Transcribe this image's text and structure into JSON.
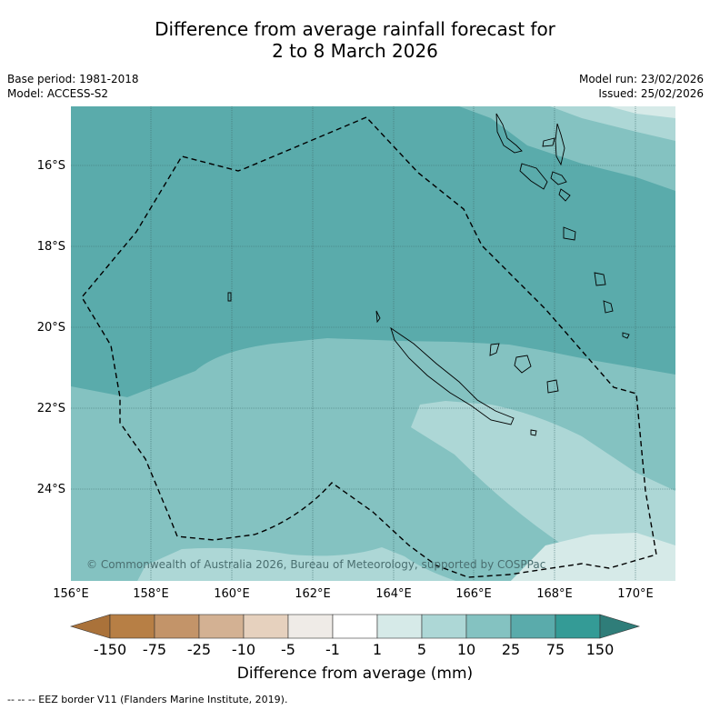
{
  "title": {
    "line1": "Difference from average rainfall forecast for",
    "line2": "2 to 8 March 2026"
  },
  "meta": {
    "base_period": "Base period: 1981-2018",
    "model": "Model: ACCESS-S2",
    "model_run": "Model run: 23/02/2026",
    "issued": "Issued: 25/02/2026"
  },
  "map": {
    "latitude_labels": [
      "16°S",
      "18°S",
      "20°S",
      "22°S",
      "24°S"
    ],
    "longitude_labels": [
      "156°E",
      "158°E",
      "160°E",
      "162°E",
      "164°E",
      "166°E",
      "168°E",
      "170°E"
    ],
    "copyright": "© Commonwealth of Australia 2026, Bureau of Meteorology, supported by COSPPac",
    "colors": {
      "band_25_75": "#5aabab",
      "band_10_25": "#84c2c1",
      "band_5_10": "#add7d6",
      "band_1_5": "#d6eae8",
      "land_outline": "#000000",
      "eez_line": "#000000"
    }
  },
  "colorbar": {
    "tick_labels": [
      "-150",
      "-75",
      "-25",
      "-10",
      "-5",
      "-1",
      "1",
      "5",
      "10",
      "25",
      "75",
      "150"
    ],
    "colors": [
      "#aa723a",
      "#b77f45",
      "#c39469",
      "#d3b193",
      "#e6d1be",
      "#efebe7",
      "#ffffff",
      "#d6eae8",
      "#add7d6",
      "#84c2c1",
      "#5aabab",
      "#349b96",
      "#2f7d79"
    ],
    "title": "Difference from average (mm)"
  },
  "footnote": "--  --  -- EEZ border V11 (Flanders Marine Institute, 2019)."
}
